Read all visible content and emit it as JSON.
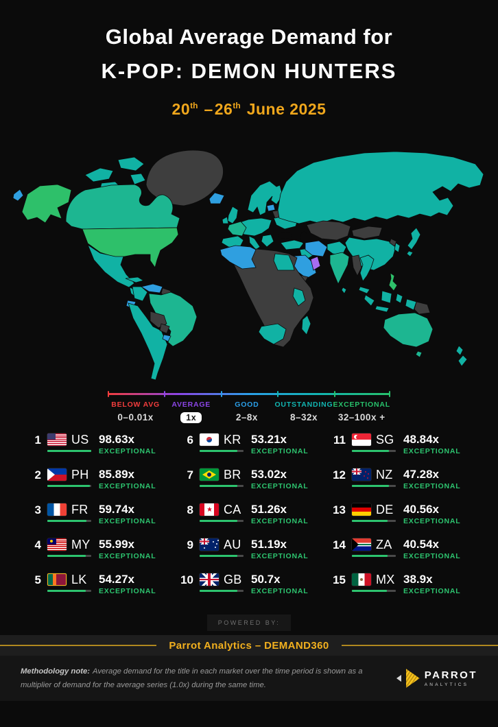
{
  "title": {
    "line1": "Global Average Demand for",
    "line2": "K-POP: DEMON HUNTERS"
  },
  "date": {
    "start_day": "20",
    "start_suffix": "th",
    "dash": "–",
    "end_day": "26",
    "end_suffix": "th",
    "month_year": "June 2025"
  },
  "colors": {
    "background": "#0b0b0b",
    "date_gold": "#f0a71c",
    "brand_gold": "#f2b01e",
    "tier_green": "#2dc46f",
    "bar_track": "#4a4a4a",
    "powered_grey": "#6f6f6f",
    "note_grey": "#9a9a9a"
  },
  "legend": {
    "items": [
      {
        "label": "BELOW AVG",
        "range": "0–0.01x",
        "color": "#f23d3d",
        "pill": false
      },
      {
        "label": "AVERAGE",
        "range": "1x",
        "color": "#8b45e6",
        "pill": true
      },
      {
        "label": "GOOD",
        "range": "2–8x",
        "color": "#2b9fe8",
        "pill": false
      },
      {
        "label": "OUTSTANDING",
        "range": "8–32x",
        "color": "#12b5b1",
        "pill": false
      },
      {
        "label": "EXCEPTIONAL",
        "range": "32–100x +",
        "color": "#27c16b",
        "pill": false
      }
    ]
  },
  "markets": [
    {
      "rank": 1,
      "code": "US",
      "flag": "us",
      "value": "98.63x",
      "tier": "EXCEPTIONAL",
      "bar_pct": 100
    },
    {
      "rank": 2,
      "code": "PH",
      "flag": "ph",
      "value": "85.89x",
      "tier": "EXCEPTIONAL",
      "bar_pct": 97
    },
    {
      "rank": 3,
      "code": "FR",
      "flag": "fr",
      "value": "59.74x",
      "tier": "EXCEPTIONAL",
      "bar_pct": 89.1
    },
    {
      "rank": 4,
      "code": "MY",
      "flag": "my",
      "value": "55.99x",
      "tier": "EXCEPTIONAL",
      "bar_pct": 87.7
    },
    {
      "rank": 5,
      "code": "LK",
      "flag": "lk",
      "value": "54.27x",
      "tier": "EXCEPTIONAL",
      "bar_pct": 87
    },
    {
      "rank": 6,
      "code": "KR",
      "flag": "kr",
      "value": "53.21x",
      "tier": "EXCEPTIONAL",
      "bar_pct": 86.6
    },
    {
      "rank": 7,
      "code": "BR",
      "flag": "br",
      "value": "53.02x",
      "tier": "EXCEPTIONAL",
      "bar_pct": 86.5
    },
    {
      "rank": 8,
      "code": "CA",
      "flag": "ca",
      "value": "51.26x",
      "tier": "EXCEPTIONAL",
      "bar_pct": 85.8
    },
    {
      "rank": 9,
      "code": "AU",
      "flag": "au",
      "value": "51.19x",
      "tier": "EXCEPTIONAL",
      "bar_pct": 85.7
    },
    {
      "rank": 10,
      "code": "GB",
      "flag": "gb",
      "value": "50.7x",
      "tier": "EXCEPTIONAL",
      "bar_pct": 85.5
    },
    {
      "rank": 11,
      "code": "SG",
      "flag": "sg",
      "value": "48.84x",
      "tier": "EXCEPTIONAL",
      "bar_pct": 84.7
    },
    {
      "rank": 12,
      "code": "NZ",
      "flag": "nz",
      "value": "47.28x",
      "tier": "EXCEPTIONAL",
      "bar_pct": 84
    },
    {
      "rank": 13,
      "code": "DE",
      "flag": "de",
      "value": "40.56x",
      "tier": "EXCEPTIONAL",
      "bar_pct": 80.7
    },
    {
      "rank": 14,
      "code": "ZA",
      "flag": "za",
      "value": "40.54x",
      "tier": "EXCEPTIONAL",
      "bar_pct": 80.6
    },
    {
      "rank": 15,
      "code": "MX",
      "flag": "mx",
      "value": "38.9x",
      "tier": "EXCEPTIONAL",
      "bar_pct": 79.7
    }
  ],
  "map": {
    "tier_colors": {
      "exceptional_high": "#2ec06a",
      "exceptional_mid": "#1db691",
      "exceptional": "#11b2a4",
      "good": "#2f9fe0",
      "average": "#a76df2",
      "no_data": "#3e3e3e"
    },
    "regions": {
      "greenland": "no_data",
      "canadian_arch": "exceptional",
      "alaska": "exceptional_high",
      "bering_island": "good",
      "canada": "exceptional_mid",
      "usa": "exceptional_high",
      "mexico": "exceptional",
      "central_america": "exceptional",
      "cuba": "exceptional",
      "venezuela": "good",
      "colombia": "exceptional",
      "guyana": "no_data",
      "brazil": "exceptional_mid",
      "ecuador": "good",
      "sa_west": "exceptional",
      "bolivia": "no_data",
      "paraguay": "no_data",
      "uruguay": "good",
      "iceland": "good",
      "uk": "exceptional",
      "ireland": "exceptional",
      "scandinavia": "exceptional",
      "europe_central": "exceptional",
      "france": "exceptional_mid",
      "iberia": "exceptional",
      "italy": "exceptional",
      "balkans": "exceptional",
      "ukraine": "exceptional",
      "belarus": "no_data",
      "baltics": "good",
      "russia": "exceptional",
      "kazakhstan": "no_data",
      "mongolia": "no_data",
      "china": "exceptional",
      "north_korea": "no_data",
      "south_korea": "exceptional",
      "japan": "exceptional",
      "turkey": "exceptional",
      "levant": "exceptional",
      "iran": "good",
      "saudi_arabia": "good",
      "oman": "average",
      "yemen": "no_data",
      "pakistan": "exceptional",
      "india": "exceptional_mid",
      "sri_lanka": "exceptional",
      "myanmar": "no_data",
      "thailand": "exceptional",
      "malaysia": "exceptional",
      "philippines": "exceptional_high",
      "sumatra": "exceptional",
      "java": "exceptional",
      "borneo": "exceptional",
      "sulawesi": "exceptional",
      "west_papua": "exceptional",
      "papua_new_guinea": "no_data",
      "australia": "exceptional_mid",
      "tasmania": "exceptional_mid",
      "new_zealand": "exceptional",
      "africa": "no_data",
      "north_africa": "good",
      "egypt": "exceptional",
      "east_africa": "exceptional",
      "south_africa": "exceptional",
      "madagascar": "exceptional"
    }
  },
  "footer": {
    "powered_by": "POWERED BY:",
    "brand_bar": "Parrot Analytics – DEMAND360",
    "methodology_label": "Methodology note:",
    "methodology_text": "Average demand for the title in each market over the time period is shown as a multiplier of demand for the average series (1.0x) during the same time.",
    "logo_name": "PARROT",
    "logo_sub": "ANALYTICS"
  },
  "chart_data": {
    "type": "heatmap",
    "subtype": "choropleth-world-map-with-ranking",
    "title": "Global Average Demand for K-POP: DEMON HUNTERS",
    "period": "20th–26th June 2025",
    "unit": "multiple of average series demand (x)",
    "legend_scale": [
      {
        "label": "BELOW AVG",
        "range": "0–0.01x",
        "color": "#f23d3d"
      },
      {
        "label": "AVERAGE",
        "range": "1x",
        "color": "#8b45e6"
      },
      {
        "label": "GOOD",
        "range": "2–8x",
        "color": "#2b9fe8"
      },
      {
        "label": "OUTSTANDING",
        "range": "8–32x",
        "color": "#12b5b1"
      },
      {
        "label": "EXCEPTIONAL",
        "range": "32–100x +",
        "color": "#27c16b"
      }
    ],
    "categories": [
      "US",
      "PH",
      "FR",
      "MY",
      "LK",
      "KR",
      "BR",
      "CA",
      "AU",
      "GB",
      "SG",
      "NZ",
      "DE",
      "ZA",
      "MX"
    ],
    "values": [
      98.63,
      85.89,
      59.74,
      55.99,
      54.27,
      53.21,
      53.02,
      51.26,
      51.19,
      50.7,
      48.84,
      47.28,
      40.56,
      40.54,
      38.9
    ],
    "tiers": [
      "EXCEPTIONAL",
      "EXCEPTIONAL",
      "EXCEPTIONAL",
      "EXCEPTIONAL",
      "EXCEPTIONAL",
      "EXCEPTIONAL",
      "EXCEPTIONAL",
      "EXCEPTIONAL",
      "EXCEPTIONAL",
      "EXCEPTIONAL",
      "EXCEPTIONAL",
      "EXCEPTIONAL",
      "EXCEPTIONAL",
      "EXCEPTIONAL",
      "EXCEPTIONAL"
    ]
  }
}
